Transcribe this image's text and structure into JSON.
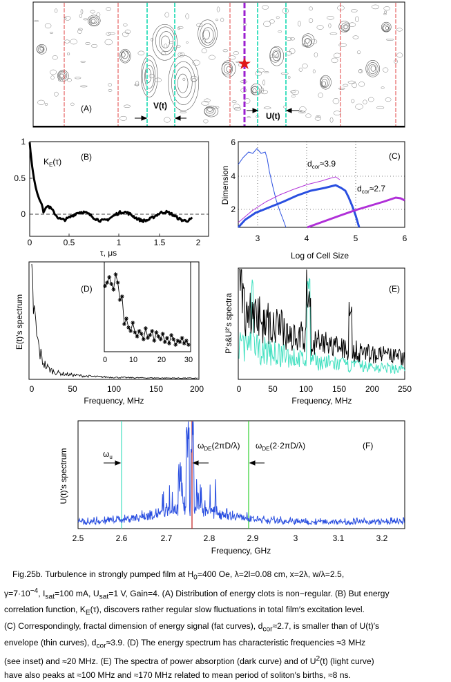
{
  "figure": {
    "panel_a": {
      "label": "(A)",
      "v_label": "V(t)",
      "u_label": "U(t)"
    },
    "panel_b": {
      "label": "(B)",
      "legend": "K",
      "legend_sub": "E",
      "legend_tail": "(τ)",
      "xlabel": "τ, μs",
      "xticks": [
        "0",
        "0.5",
        "1",
        "1.5",
        "2"
      ],
      "yticks": [
        "1",
        "0.5",
        "0"
      ]
    },
    "panel_c": {
      "label": "(C)",
      "ylabel": "Dimension",
      "xlabel": "Log of Cell Size",
      "xticks": [
        "3",
        "4",
        "5",
        "6"
      ],
      "yticks": [
        "6",
        "4",
        "2"
      ],
      "ann1": "d",
      "ann1_sub": "cor",
      "ann1_val": "≈3.9",
      "ann2": "d",
      "ann2_sub": "cor",
      "ann2_val": "≈2.7"
    },
    "panel_d": {
      "label": "(D)",
      "ylabel": "E(t)'s spectrum",
      "xlabel": "Frequency, MHz",
      "xticks": [
        "0",
        "50",
        "100",
        "150",
        "200"
      ],
      "inset_xticks": [
        "0",
        "10",
        "20",
        "30"
      ]
    },
    "panel_e": {
      "label": "(E)",
      "ylabel": "P's&U²'s spectra",
      "xlabel": "Frequency, MHz",
      "xticks": [
        "0",
        "50",
        "100",
        "150",
        "200",
        "250"
      ]
    },
    "panel_f": {
      "label": "(F)",
      "ylabel": "U(t)'s spectrum",
      "xlabel": "Frequency, GHz",
      "xticks": [
        "2.5",
        "2.6",
        "2.7",
        "2.8",
        "2.9",
        "3",
        "3.1",
        "3.2"
      ],
      "omega_u": "ω",
      "omega_u_sub": "u",
      "omega_de1": "ω",
      "omega_de1_sub": "DE",
      "omega_de1_tail": "(2πD/λ)",
      "omega_de2": "ω",
      "omega_de2_sub": "DE",
      "omega_de2_tail": "(2·2πD/λ)"
    }
  },
  "caption": {
    "line1": "Fig.25b.  Turbulence in strongly pumped film at H",
    "line1_sub": "0",
    "line1_tail": "=400 Oe, λ=2l=0.08 cm, x=2λ, w/λ=2.5,",
    "line2a": "γ=7·10",
    "line2_sup": "−4",
    "line2b": ", I",
    "line2_sub1": "sat",
    "line2c": "=100 mA, U",
    "line2_sub2": "sat",
    "line2d": "=1 V, Gain=4. (A) Distribution of energy clots is non−regular. (B) But energy",
    "line3a": "correlation function, K",
    "line3_sub": "E",
    "line3b": "(τ), discovers rather regular slow fluctuations in total film′s excitation level.",
    "line4a": "(C) Correspondingly, fractal dimension of energy signal (fat curves), d",
    "line4_sub": "cor",
    "line4b": "≈2.7, is smaller than of U(t)′s",
    "line5a": "envelope (thin curves), d",
    "line5_sub": "cor",
    "line5b": "≈3.9. (D) The energy spectrum has characteristic frequencies ≈3 MHz",
    "line6a": "(see inset) and ≈20 MHz. (E) The spectra of power absorption (dark curve) and of U",
    "line6_sup": "2",
    "line6b": "(t) (light curve)",
    "line7": "have also peaks at ≈100 MHz and ≈170 MHz related to mean period of soliton′s births, ≈8 ns."
  }
}
